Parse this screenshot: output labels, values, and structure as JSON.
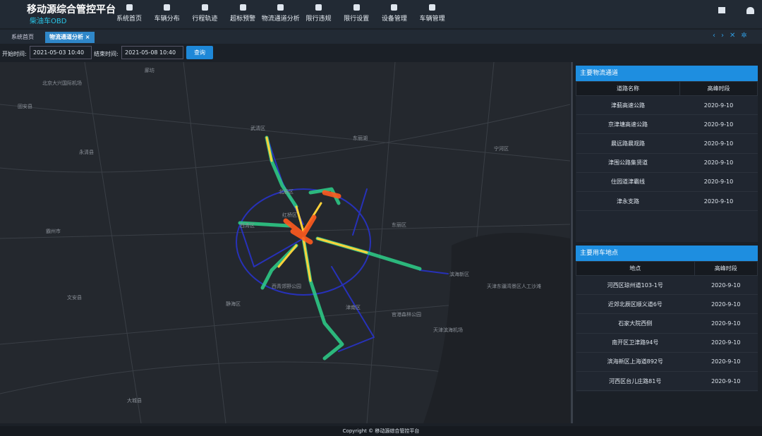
{
  "header": {
    "title": "移动源综合管控平台",
    "subtitle": "柴油车OBD",
    "nav": [
      "系统首页",
      "车辆分布",
      "行程轨迹",
      "超标预警",
      "物流通道分析",
      "限行违规",
      "限行设置",
      "设备管理",
      "车辆管理"
    ]
  },
  "tabs": [
    "系统首页",
    "物流通道分析"
  ],
  "filters": {
    "start_label": "开始时间:",
    "start_value": "2021-05-03 10:40",
    "end_label": "结束时间:",
    "end_value": "2021-05-08 10:40",
    "button": "查询"
  },
  "map": {
    "labels": [
      "廊坊",
      "北京大兴国际机场",
      "固安县",
      "永清县",
      "霸州市",
      "文安县",
      "大城县",
      "武清区",
      "北辰区",
      "红桥区",
      "西青区",
      "东丽区",
      "津南区",
      "滨海新区",
      "静海区",
      "宁河区",
      "天津滨海机场",
      "西青郊野公园",
      "官港森林公园",
      "天津东疆湾景区人工沙滩",
      "东丽湖"
    ]
  },
  "panels": [
    {
      "title": "主要物流通道",
      "columns": [
        "道路名称",
        "高峰时段"
      ],
      "rows": [
        [
          "津蓟高速公路",
          "2020-9-10"
        ],
        [
          "京津塘高速公路",
          "2020-9-10"
        ],
        [
          "晨远路晨观路",
          "2020-9-10"
        ],
        [
          "津围公路集贤道",
          "2020-9-10"
        ],
        [
          "住园道津霸线",
          "2020-9-10"
        ],
        [
          "津永支路",
          "2020-9-10"
        ]
      ]
    },
    {
      "title": "主要用车地点",
      "columns": [
        "地点",
        "高峰时段"
      ],
      "rows": [
        [
          "河西区琼州道103-1号",
          "2020-9-10"
        ],
        [
          "近郊北辰区顺义道6号",
          "2020-9-10"
        ],
        [
          "石家大院西侧",
          "2020-9-10"
        ],
        [
          "南开区卫津路94号",
          "2020-9-10"
        ],
        [
          "滨海新区上海道892号",
          "2020-9-10"
        ],
        [
          "河西区台儿庄路81号",
          "2020-9-10"
        ]
      ]
    }
  ],
  "footer": "Copyright © 移动源综合管控平台"
}
